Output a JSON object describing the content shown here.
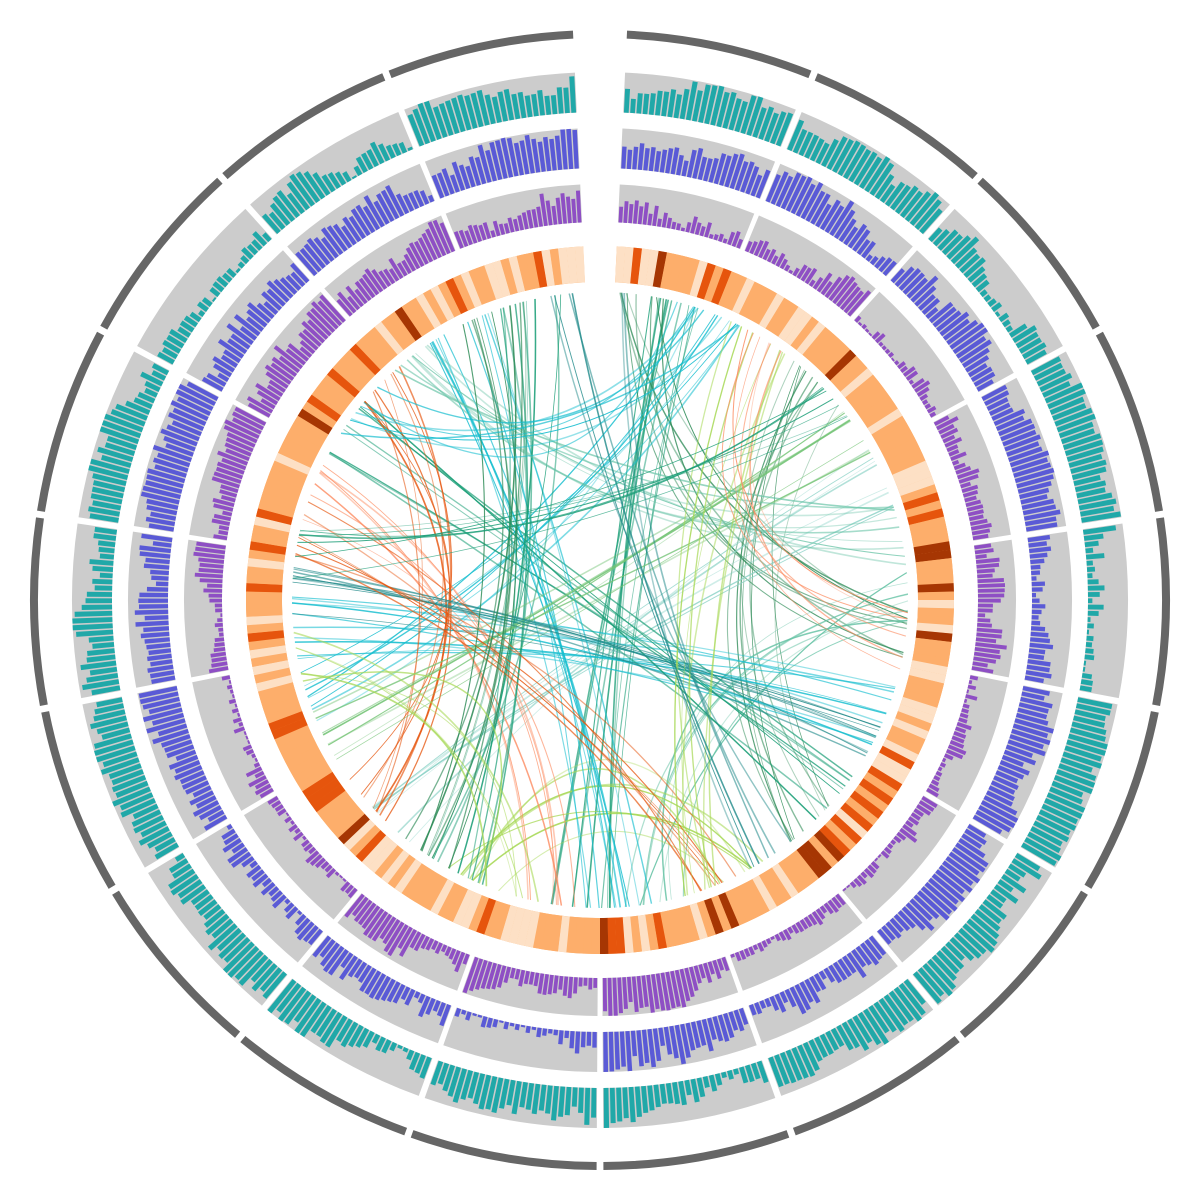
{
  "figure": {
    "type": "circos-plot",
    "segment_count": 18,
    "gap_at_top": true,
    "has_text_labels": false
  },
  "colors": {
    "background": "#ffffff",
    "ideogram": "#666666",
    "track_background": "#cccccc",
    "bar_track_outer": "#20a8a8",
    "bar_track_middle": "#5a5ad6",
    "bar_track_inner": "#8e4fc4",
    "heatmap_light": "#fde0c5",
    "heatmap_mid": "#fdae6b",
    "heatmap_dark": "#e6550d",
    "heatmap_darkest": "#a63603",
    "link_palette": [
      "#1b9e77",
      "#17becf",
      "#2e8b57",
      "#66c2a5",
      "#e6550d",
      "#fc8d62",
      "#a6d854",
      "#8dd3c7",
      "#238b8b",
      "#74c476"
    ]
  },
  "tracks": [
    {
      "name": "ideogram",
      "kind": "segments"
    },
    {
      "name": "bar-track-1",
      "kind": "histogram",
      "color_key": "bar_track_outer"
    },
    {
      "name": "bar-track-2",
      "kind": "histogram",
      "color_key": "bar_track_middle"
    },
    {
      "name": "bar-track-3",
      "kind": "histogram",
      "color_key": "bar_track_inner"
    },
    {
      "name": "heatmap-track",
      "kind": "heatmap"
    },
    {
      "name": "links",
      "kind": "chords"
    }
  ],
  "link_bundles": [
    {
      "from": 0.03,
      "to": 0.51,
      "count": 10,
      "color": 0
    },
    {
      "from": 0.02,
      "to": 0.26,
      "count": 8,
      "color": 2
    },
    {
      "from": 0.06,
      "to": 0.7,
      "count": 8,
      "color": 1
    },
    {
      "from": 0.12,
      "to": 0.38,
      "count": 9,
      "color": 2
    },
    {
      "from": 0.18,
      "to": 0.62,
      "count": 8,
      "color": 7
    },
    {
      "from": 0.24,
      "to": 0.47,
      "count": 8,
      "color": 3
    },
    {
      "from": 0.31,
      "to": 0.74,
      "count": 10,
      "color": 1
    },
    {
      "from": 0.36,
      "to": 0.85,
      "count": 8,
      "color": 0
    },
    {
      "from": 0.42,
      "to": 0.57,
      "count": 7,
      "color": 6
    },
    {
      "from": 0.49,
      "to": 0.93,
      "count": 10,
      "color": 1
    },
    {
      "from": 0.53,
      "to": 0.81,
      "count": 7,
      "color": 5
    },
    {
      "from": 0.58,
      "to": 0.97,
      "count": 9,
      "color": 0
    },
    {
      "from": 0.64,
      "to": 0.88,
      "count": 8,
      "color": 4
    },
    {
      "from": 0.68,
      "to": 0.15,
      "count": 8,
      "color": 9
    },
    {
      "from": 0.76,
      "to": 0.33,
      "count": 9,
      "color": 8
    },
    {
      "from": 0.79,
      "to": 0.44,
      "count": 7,
      "color": 4
    },
    {
      "from": 0.9,
      "to": 0.21,
      "count": 9,
      "color": 3
    },
    {
      "from": 0.95,
      "to": 0.6,
      "count": 8,
      "color": 2
    },
    {
      "from": 0.08,
      "to": 0.45,
      "count": 7,
      "color": 6
    },
    {
      "from": 0.27,
      "to": 0.09,
      "count": 6,
      "color": 5
    },
    {
      "from": 0.72,
      "to": 0.55,
      "count": 6,
      "color": 6
    },
    {
      "from": 0.86,
      "to": 0.05,
      "count": 7,
      "color": 1
    },
    {
      "from": 0.4,
      "to": 0.99,
      "count": 6,
      "color": 8
    },
    {
      "from": 0.14,
      "to": 0.78,
      "count": 7,
      "color": 0
    }
  ]
}
